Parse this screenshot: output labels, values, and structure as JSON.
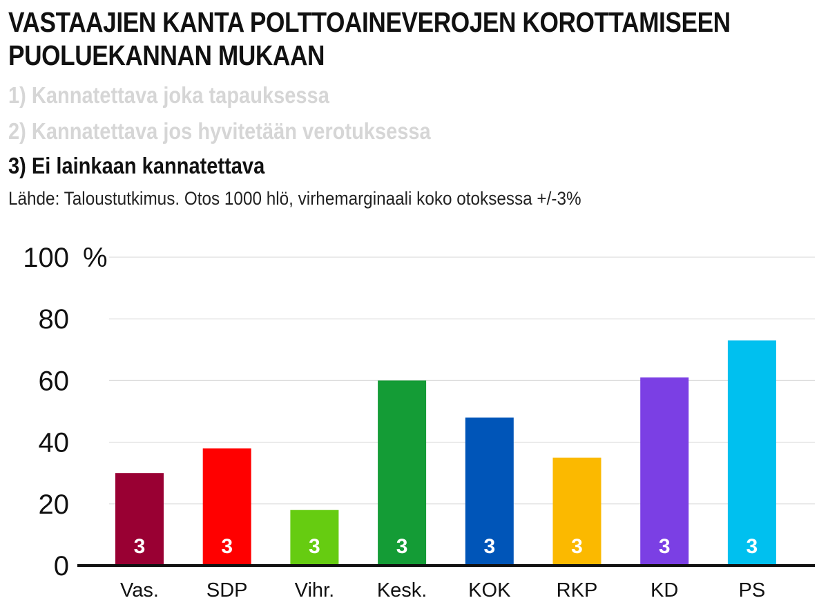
{
  "header": {
    "title_line1": "VASTAAJIEN KANTA POLTTOAINEVEROJEN KOROTTAMISEEN",
    "title_line2": "PUOLUEKANNAN MUKAAN",
    "options": [
      "1) Kannatettava joka tapauksessa",
      "2) Kannatettava jos hyvitetään verotuksessa",
      "3) Ei lainkaan kannatettava"
    ],
    "active_option": 2,
    "source": "Lähde: Taloustutkimus. Otos 1000 hlö, virhemarginaali koko otoksessa +/-3%"
  },
  "chart_data": {
    "type": "bar",
    "categories": [
      "Vas.",
      "SDP",
      "Vihr.",
      "Kesk.",
      "KOK",
      "RKP",
      "KD",
      "PS"
    ],
    "values": [
      30,
      38,
      18,
      60,
      48,
      35,
      61,
      73
    ],
    "data_labels": [
      "3",
      "3",
      "3",
      "3",
      "3",
      "3",
      "3",
      "3"
    ],
    "colors": [
      "#990033",
      "#ff0000",
      "#66cc11",
      "#149c36",
      "#0055b8",
      "#fbb900",
      "#7b3fe4",
      "#00c0ef"
    ],
    "yticks": [
      0,
      20,
      40,
      60,
      80,
      100
    ],
    "ytick_labels": [
      "0",
      "20",
      "40",
      "60",
      "80",
      "100"
    ],
    "yunit": "%",
    "ylim": [
      0,
      100
    ],
    "grid": true,
    "xlabel": "",
    "ylabel": ""
  }
}
